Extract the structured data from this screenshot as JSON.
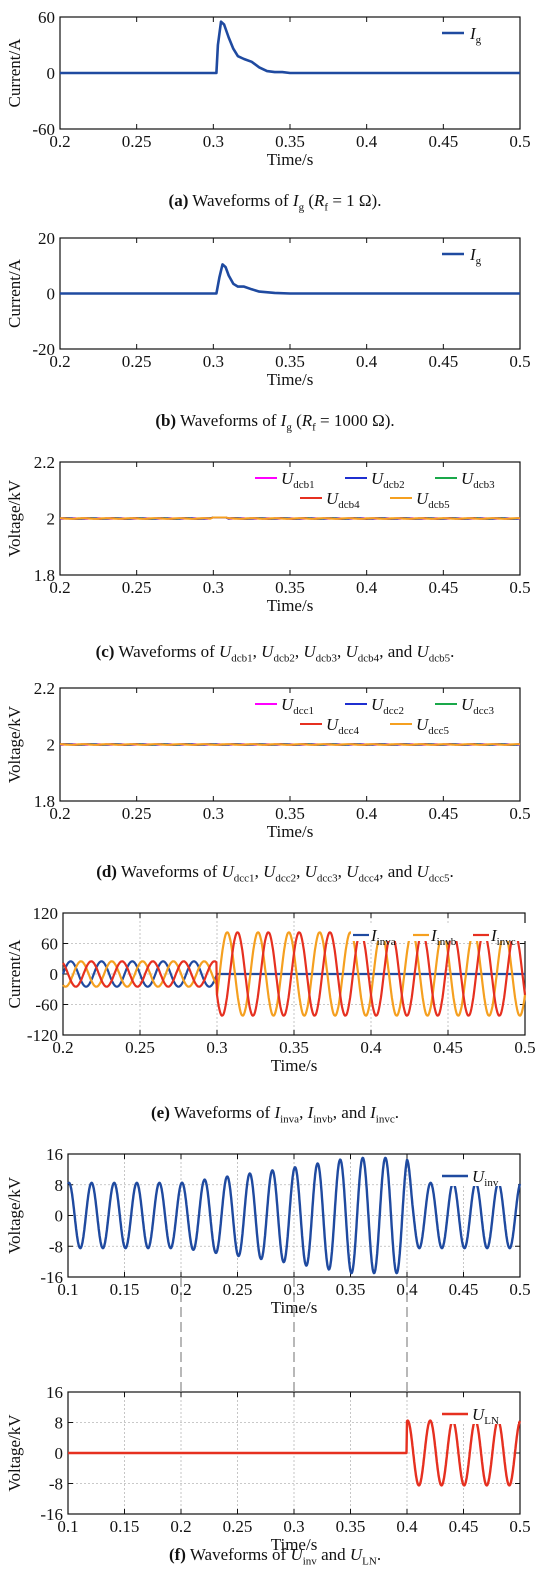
{
  "chart_data": [
    {
      "id": "a",
      "type": "line",
      "title": "",
      "xlabel": "Time/s",
      "ylabel": "Current/A",
      "xlim": [
        0.2,
        0.5
      ],
      "ylim": [
        -60,
        60
      ],
      "xticks": [
        "0.2",
        "0.25",
        "0.3",
        "0.35",
        "0.4",
        "0.45",
        "0.5"
      ],
      "yticks": [
        "60",
        "0",
        "-60"
      ],
      "grid": false,
      "legend_position": "top-right",
      "series": [
        {
          "name": "I_g",
          "color": "#1f4aa0",
          "points": [
            [
              0.2,
              0
            ],
            [
              0.3,
              0
            ],
            [
              0.302,
              0
            ],
            [
              0.303,
              30
            ],
            [
              0.305,
              55
            ],
            [
              0.307,
              52
            ],
            [
              0.31,
              38
            ],
            [
              0.313,
              26
            ],
            [
              0.316,
              18
            ],
            [
              0.32,
              15
            ],
            [
              0.325,
              12
            ],
            [
              0.33,
              6
            ],
            [
              0.335,
              2
            ],
            [
              0.34,
              1
            ],
            [
              0.345,
              1
            ],
            [
              0.35,
              0
            ],
            [
              0.36,
              0
            ],
            [
              0.5,
              0
            ]
          ]
        }
      ],
      "caption": {
        "label": "(a)",
        "text_before": " Waveforms of ",
        "sym": "I",
        "sym_sub": "g",
        "paren_open": " (",
        "r": "R",
        "r_sub": "f",
        "rest": " = 1 Ω)."
      }
    },
    {
      "id": "b",
      "type": "line",
      "title": "",
      "xlabel": "Time/s",
      "ylabel": "Current/A",
      "xlim": [
        0.2,
        0.5
      ],
      "ylim": [
        -20,
        20
      ],
      "xticks": [
        "0.2",
        "0.25",
        "0.3",
        "0.35",
        "0.4",
        "0.45",
        "0.5"
      ],
      "yticks": [
        "20",
        "0",
        "-20"
      ],
      "grid": false,
      "legend_position": "top-right",
      "series": [
        {
          "name": "I_g",
          "color": "#1f4aa0",
          "points": [
            [
              0.2,
              0
            ],
            [
              0.302,
              0
            ],
            [
              0.304,
              6
            ],
            [
              0.306,
              10.5
            ],
            [
              0.308,
              9.5
            ],
            [
              0.31,
              6.5
            ],
            [
              0.313,
              3.5
            ],
            [
              0.316,
              2.5
            ],
            [
              0.32,
              2.5
            ],
            [
              0.325,
              1.5
            ],
            [
              0.33,
              0.7
            ],
            [
              0.34,
              0.2
            ],
            [
              0.35,
              0
            ],
            [
              0.5,
              0
            ]
          ]
        }
      ],
      "caption": {
        "label": "(b)",
        "text_before": " Waveforms of ",
        "sym": "I",
        "sym_sub": "g",
        "paren_open": " (",
        "r": "R",
        "r_sub": "f",
        "rest": " = 1000 Ω)."
      }
    },
    {
      "id": "c",
      "type": "line",
      "title": "",
      "xlabel": "Time/s",
      "ylabel": "Voltage/kV",
      "xlim": [
        0.2,
        0.5
      ],
      "ylim": [
        1.8,
        2.2
      ],
      "xticks": [
        "0.2",
        "0.25",
        "0.3",
        "0.35",
        "0.4",
        "0.45",
        "0.5"
      ],
      "yticks": [
        "2.2",
        "2",
        "1.8"
      ],
      "grid": false,
      "legend_position": "top",
      "series": [
        {
          "name": "U_dcb1",
          "color": "#ff00ff",
          "value": 2.0
        },
        {
          "name": "U_dcb2",
          "color": "#1f2fd0",
          "value": 2.0
        },
        {
          "name": "U_dcb3",
          "color": "#1aa84a",
          "value": 2.0
        },
        {
          "name": "U_dcb4",
          "color": "#e63020",
          "value": 2.0
        },
        {
          "name": "U_dcb5",
          "color": "#f5a020",
          "value": 2.0
        }
      ],
      "caption": {
        "label": "(c)",
        "text": " Waveforms of U_dcb1, U_dcb2, U_dcb3, U_dcb4, and U_dcb5."
      }
    },
    {
      "id": "d",
      "type": "line",
      "title": "",
      "xlabel": "Time/s",
      "ylabel": "Voltage/kV",
      "xlim": [
        0.2,
        0.5
      ],
      "ylim": [
        1.8,
        2.2
      ],
      "xticks": [
        "0.2",
        "0.25",
        "0.3",
        "0.35",
        "0.4",
        "0.45",
        "0.5"
      ],
      "yticks": [
        "2.2",
        "2",
        "1.8"
      ],
      "grid": false,
      "legend_position": "top",
      "series": [
        {
          "name": "U_dcc1",
          "color": "#ff00ff",
          "value": 2.0
        },
        {
          "name": "U_dcc2",
          "color": "#1f2fd0",
          "value": 2.0
        },
        {
          "name": "U_dcc3",
          "color": "#1aa84a",
          "value": 2.0
        },
        {
          "name": "U_dcc4",
          "color": "#e63020",
          "value": 2.0
        },
        {
          "name": "U_dcc5",
          "color": "#f5a020",
          "value": 2.0
        }
      ],
      "caption": {
        "label": "(d)",
        "text": " Waveforms of U_dcc1, U_dcc2, U_dcc3, U_dcc4, and U_dcc5."
      }
    },
    {
      "id": "e",
      "type": "line",
      "title": "",
      "xlabel": "Time/s",
      "ylabel": "Current/A",
      "xlim": [
        0.2,
        0.5
      ],
      "ylim": [
        -120,
        120
      ],
      "xticks": [
        "0.2",
        "0.25",
        "0.3",
        "0.35",
        "0.4",
        "0.45",
        "0.5"
      ],
      "yticks": [
        "120",
        "60",
        "0",
        "-60",
        "-120"
      ],
      "grid": true,
      "legend_position": "top-right",
      "series": [
        {
          "name": "I_inva",
          "color": "#1f4aa0",
          "amp_before": 25,
          "amp_after": 0,
          "phase_deg": 0
        },
        {
          "name": "I_invb",
          "color": "#f5a020",
          "amp_before": 25,
          "amp_after": 82,
          "phase_deg": -120
        },
        {
          "name": "I_invc",
          "color": "#e63020",
          "amp_before": 25,
          "amp_after": 82,
          "phase_deg": 120
        }
      ],
      "frequency_hz": 50,
      "fault_time": 0.3,
      "caption": {
        "label": "(e)",
        "text": " Waveforms of I_inva, I_invb, and I_invc."
      }
    },
    {
      "id": "f1",
      "type": "line",
      "title": "",
      "xlabel": "Time/s",
      "ylabel": "Voltage/kV",
      "xlim": [
        0.1,
        0.5
      ],
      "ylim": [
        -16,
        16
      ],
      "xticks": [
        "0.1",
        "0.15",
        "0.2",
        "0.25",
        "0.3",
        "0.35",
        "0.4",
        "0.45",
        "0.5"
      ],
      "yticks": [
        "16",
        "8",
        "0",
        "-8",
        "-16"
      ],
      "grid": true,
      "legend_position": "top-right",
      "series": [
        {
          "name": "U_inv",
          "color": "#1f4aa0",
          "envelope": [
            [
              0.1,
              8.5
            ],
            [
              0.2,
              8.5
            ],
            [
              0.25,
              10.5
            ],
            [
              0.3,
              12.5
            ],
            [
              0.35,
              15
            ],
            [
              0.4,
              15
            ],
            [
              0.405,
              8.5
            ],
            [
              0.5,
              8.5
            ]
          ]
        }
      ],
      "frequency_hz": 50
    },
    {
      "id": "f2",
      "type": "line",
      "title": "",
      "xlabel": "Time/s",
      "ylabel": "Voltage/kV",
      "xlim": [
        0.1,
        0.5
      ],
      "ylim": [
        -16,
        16
      ],
      "xticks": [
        "0.1",
        "0.15",
        "0.2",
        "0.25",
        "0.3",
        "0.35",
        "0.4",
        "0.45",
        "0.5"
      ],
      "yticks": [
        "16",
        "8",
        "0",
        "-8",
        "-16"
      ],
      "grid": true,
      "legend_position": "top-right",
      "series": [
        {
          "name": "U_LN",
          "color": "#e63020",
          "amp_before": 0,
          "amp_after": 8.5,
          "switch_time": 0.4
        }
      ],
      "frequency_hz": 50,
      "caption": {
        "label": "(f)",
        "text": " Waveforms of U_inv and U_LN."
      }
    }
  ]
}
